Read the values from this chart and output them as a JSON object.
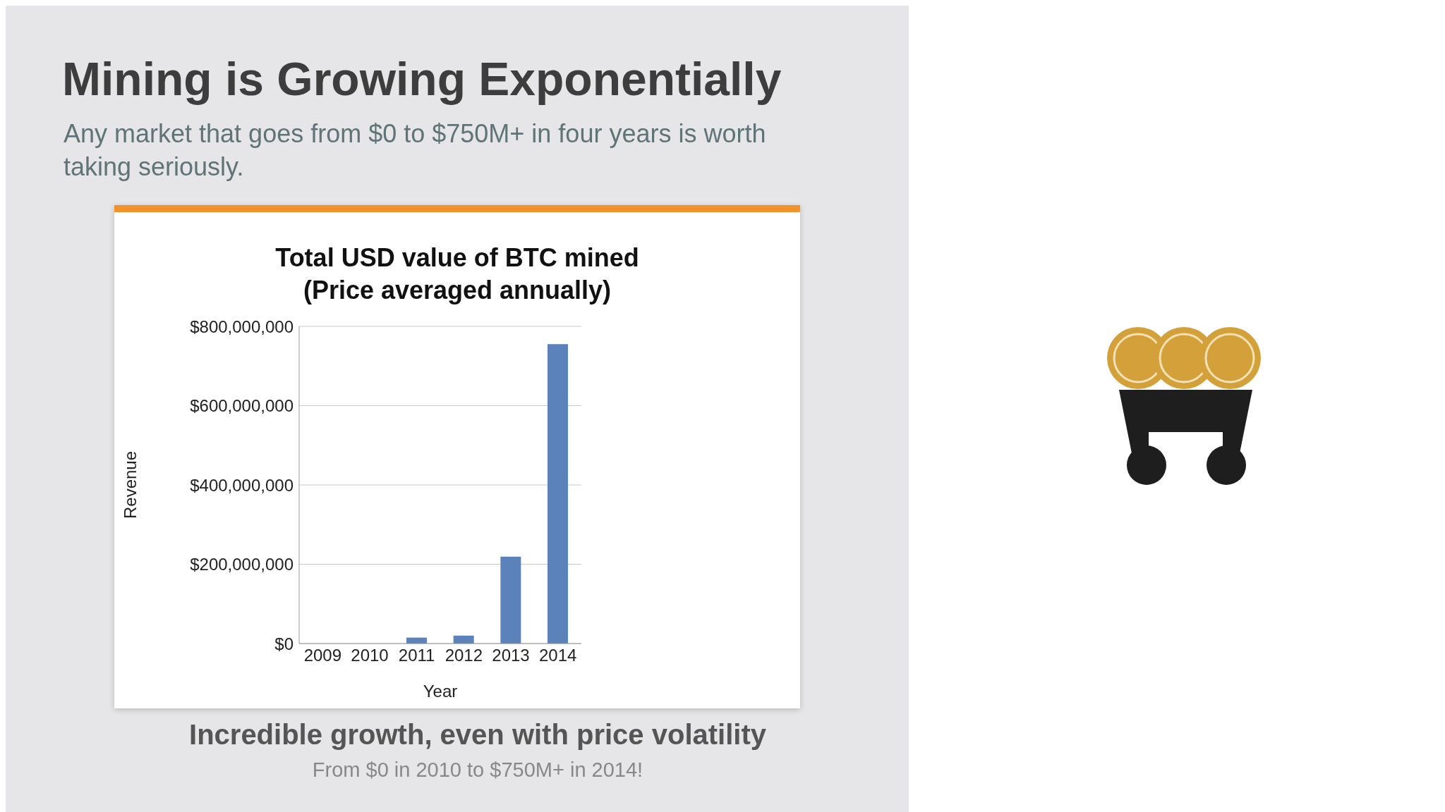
{
  "chart_data": {
    "type": "bar",
    "title": "Total USD value of BTC mined\n(Price averaged annually)",
    "xlabel": "Year",
    "ylabel": "Revenue",
    "categories": [
      "2009",
      "2010",
      "2011",
      "2012",
      "2013",
      "2014"
    ],
    "values": [
      0,
      0,
      15000000,
      20000000,
      219000000,
      755000000
    ],
    "color": "#5b82bb",
    "ylim": [
      0,
      800000000
    ],
    "yticks": [
      {
        "value": 0,
        "label": "$0"
      },
      {
        "value": 200000000,
        "label": "$200,000,000"
      },
      {
        "value": 400000000,
        "label": "$400,000,000"
      },
      {
        "value": 600000000,
        "label": "$600,000,000"
      },
      {
        "value": 800000000,
        "label": "$800,000,000"
      }
    ],
    "grid": "y",
    "annotations": [
      "Mining is Growing Exponentially",
      "Any market that goes from $0 to $750M+ in four years is worth taking seriously.",
      "Incredible growth, even with price volatility",
      "From $0 in 2010 to $750M+ in 2014!"
    ]
  }
}
